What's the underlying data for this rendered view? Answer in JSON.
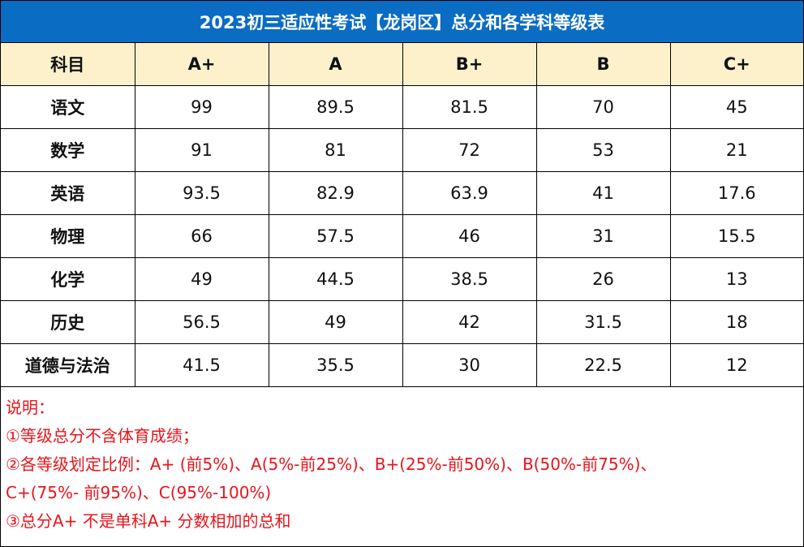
{
  "title": "2023初三适应性考试【龙岗区】总分和各学科等级表",
  "header": [
    "科目",
    "A+",
    "A",
    "B+",
    "B",
    "C+"
  ],
  "rows": [
    [
      "语文",
      "99",
      "89.5",
      "81.5",
      "70",
      "45"
    ],
    [
      "数学",
      "91",
      "81",
      "72",
      "53",
      "21"
    ],
    [
      "英语",
      "93.5",
      "82.9",
      "63.9",
      "41",
      "17.6"
    ],
    [
      "物理",
      "66",
      "57.5",
      "46",
      "31",
      "15.5"
    ],
    [
      "化学",
      "49",
      "44.5",
      "38.5",
      "26",
      "13"
    ],
    [
      "历史",
      "56.5",
      "49",
      "42",
      "31.5",
      "18"
    ],
    [
      "道德与法治",
      "41.5",
      "35.5",
      "30",
      "22.5",
      "12"
    ]
  ],
  "notes": {
    "heading": "说明：",
    "line1": "①等级总分不含体育成绩；",
    "line2a": "②各等级划定比例：A+ (前5%)、A(5%-前25%)、B+(25%-前50%)、B(50%-前75%)、",
    "line2b": "C+(75%- 前95%)、C(95%-100%)",
    "line3": "③总分A+ 不是单科A+ 分数相加的总和"
  },
  "colors": {
    "title_bg": "#0b6cc4",
    "header_bg": "#fdf1cc",
    "note_text": "#e8141c"
  }
}
